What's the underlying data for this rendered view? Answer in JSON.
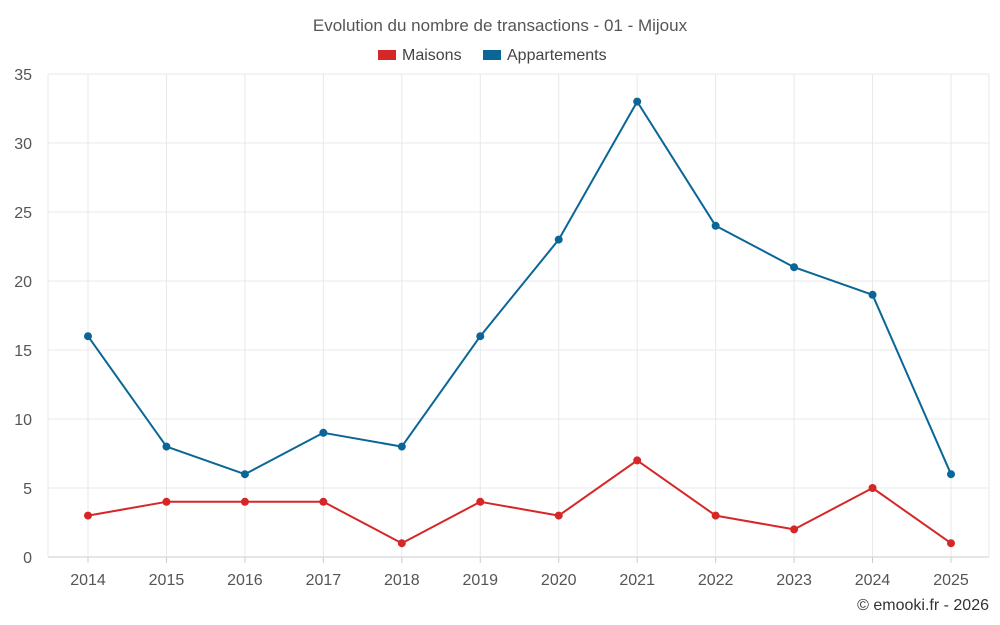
{
  "chart_data": {
    "type": "line",
    "title": "Evolution du nombre de transactions - 01 - Mijoux",
    "categories": [
      "2014",
      "2015",
      "2016",
      "2017",
      "2018",
      "2019",
      "2020",
      "2021",
      "2022",
      "2023",
      "2024",
      "2025"
    ],
    "series": [
      {
        "name": "Maisons",
        "color": "#d62728",
        "values": [
          3,
          4,
          4,
          4,
          1,
          4,
          3,
          7,
          3,
          2,
          5,
          1
        ]
      },
      {
        "name": "Appartements",
        "color": "#0b6698",
        "values": [
          16,
          8,
          6,
          9,
          8,
          16,
          23,
          33,
          24,
          21,
          19,
          6
        ]
      }
    ],
    "ylim": [
      0,
      35
    ],
    "yticks": [
      0,
      5,
      10,
      15,
      20,
      25,
      30,
      35
    ],
    "grid": true,
    "legend_position": "top-center",
    "xlabel": "",
    "ylabel": ""
  },
  "credit": "© emooki.fr - 2026"
}
